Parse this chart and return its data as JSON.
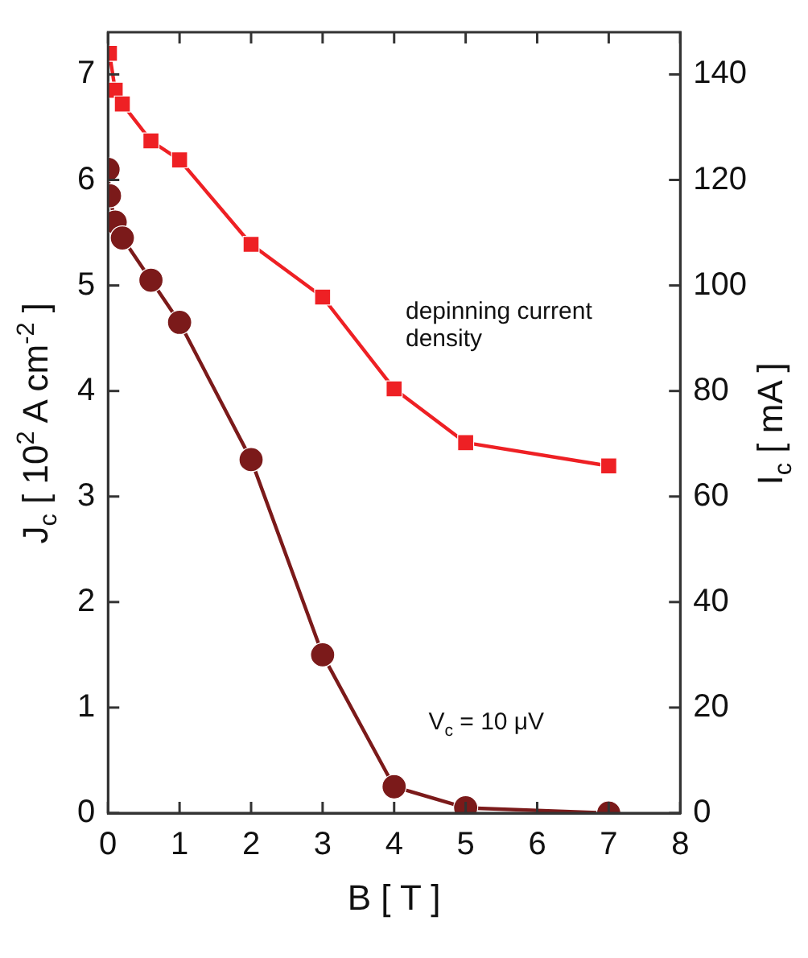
{
  "chart_data": {
    "type": "line",
    "xlabel": "B  [ T ]",
    "ylabel": "J$_{c}$  [ 10$^{2}$ A cm$^{-2}$ ]",
    "y2label": "I$_{c}$  [ mA ]",
    "xlim": [
      0,
      8
    ],
    "xticks": [
      0,
      1,
      2,
      3,
      4,
      5,
      6,
      7,
      8
    ],
    "ylim": [
      0,
      7.4
    ],
    "yticks": [
      0,
      1,
      2,
      3,
      4,
      5,
      6,
      7
    ],
    "y2lim": [
      0,
      148
    ],
    "y2ticks": [
      0,
      20,
      40,
      60,
      80,
      100,
      120,
      140
    ],
    "grid": false,
    "legend": false,
    "line_style": "solid",
    "series": [
      {
        "color": "#ee2024",
        "marker": "square",
        "x": [
          0.02,
          0.1,
          0.2,
          0.6,
          1,
          2,
          3,
          4,
          5,
          7
        ],
        "values": [
          7.2,
          6.85,
          6.72,
          6.37,
          6.19,
          5.39,
          4.89,
          4.02,
          3.51,
          3.29
        ]
      },
      {
        "color": "#7b1a1a",
        "marker": "circle",
        "x": [
          0,
          0.02,
          0.1,
          0.2,
          0.6,
          1,
          2,
          3,
          4,
          5,
          7
        ],
        "values": [
          6.1,
          5.85,
          5.6,
          5.45,
          5.05,
          4.65,
          3.35,
          1.5,
          0.25,
          0.05,
          0.0
        ]
      }
    ],
    "annotations": [
      "depinning current density",
      "V$_{c}$ = 10 μV"
    ]
  }
}
